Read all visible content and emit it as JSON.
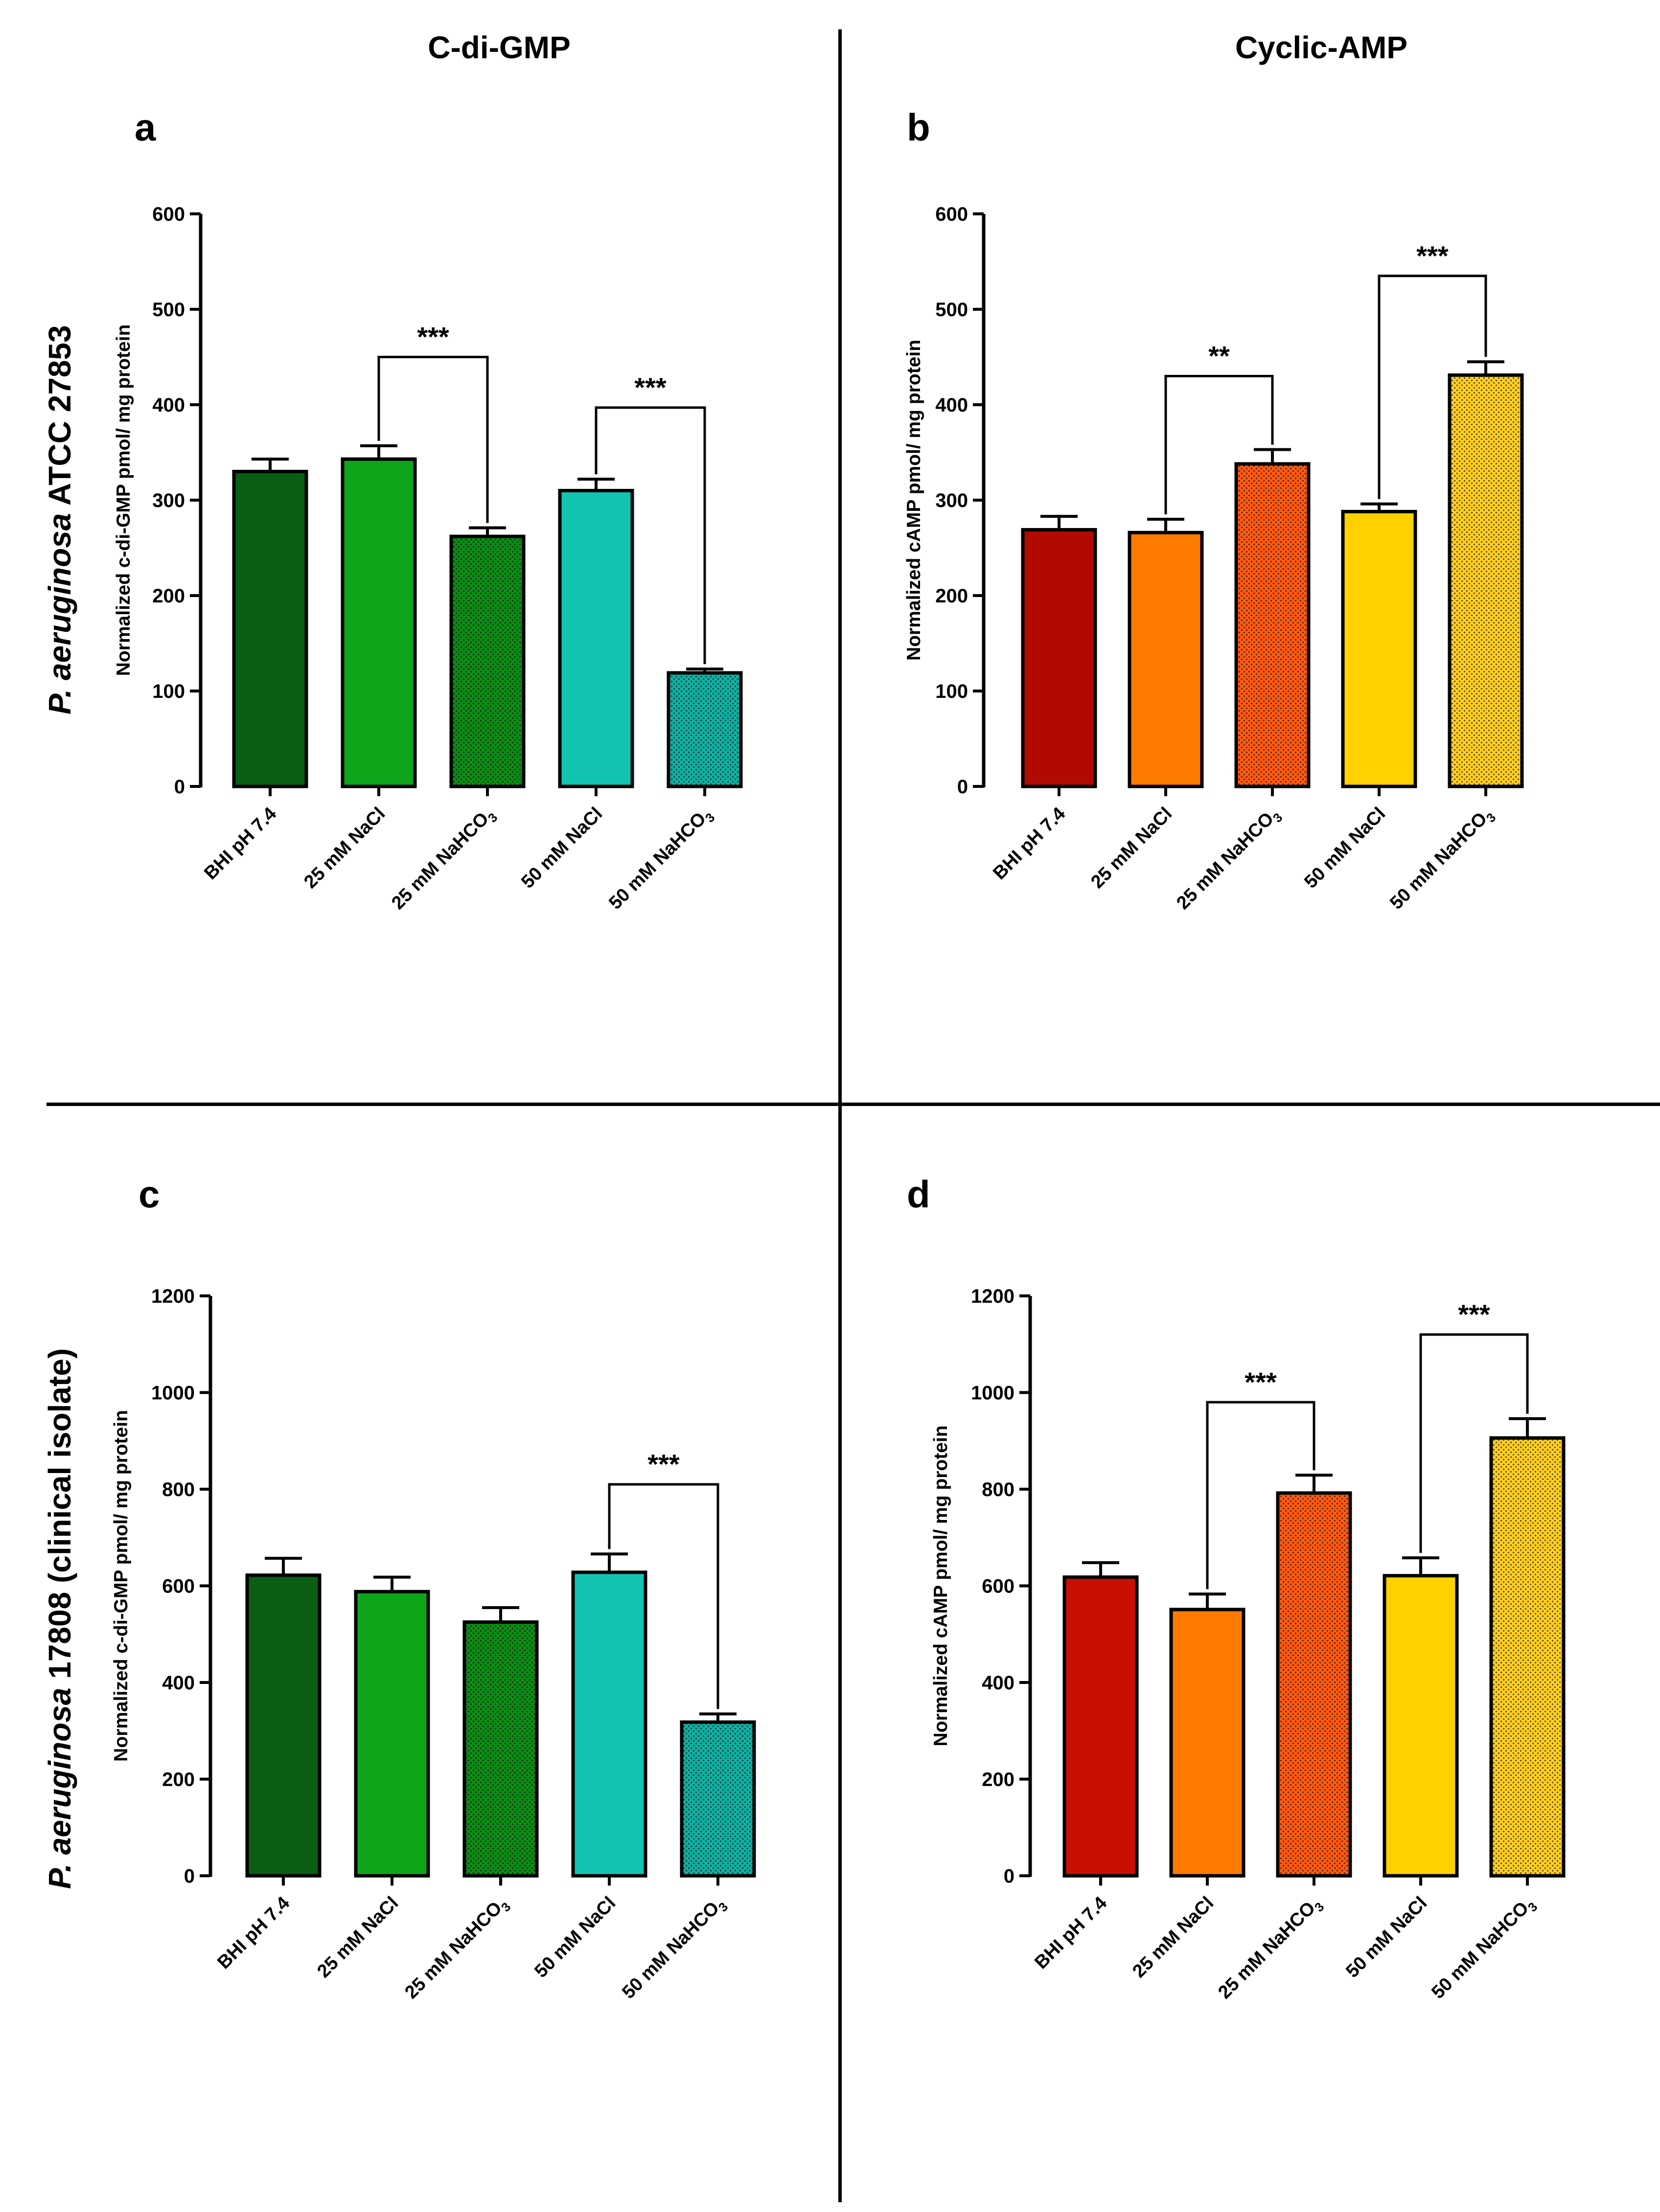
{
  "column_headers": [
    "C-di-GMP",
    "Cyclic-AMP"
  ],
  "row_labels": [
    {
      "italic": "P. aeruginosa",
      "rest": " ATCC 27853"
    },
    {
      "italic": "P. aeruginosa",
      "rest": " 17808 (clinical isolate)"
    }
  ],
  "chart_data": [
    {
      "panel": "a",
      "type": "bar",
      "ylabel": "Normalized c-di-GMP pmol/ mg protein",
      "ylim": [
        0,
        600
      ],
      "yticks": [
        0,
        100,
        200,
        300,
        400,
        500,
        600
      ],
      "categories": [
        "BHI pH 7.4",
        "25 mM NaCl",
        "25 mM NaHCO3",
        "50 mM NaCl",
        "50 mM NaHCO3"
      ],
      "values": [
        330,
        343,
        262,
        310,
        119
      ],
      "errors": [
        13,
        14,
        9,
        12,
        4
      ],
      "colors": [
        "#0a5e14",
        "#0fa51b",
        "#0c8c16",
        "#11c4b2",
        "#0fb0a2"
      ],
      "dotted": [
        false,
        false,
        true,
        false,
        true
      ],
      "significance": [
        {
          "from": 1,
          "to": 2,
          "label": "***",
          "level": 450
        },
        {
          "from": 3,
          "to": 4,
          "label": "***",
          "level": 397
        }
      ]
    },
    {
      "panel": "b",
      "type": "bar",
      "ylabel": "Normalized cAMP pmol/ mg protein",
      "ylim": [
        0,
        600
      ],
      "yticks": [
        0,
        100,
        200,
        300,
        400,
        500,
        600
      ],
      "categories": [
        "BHI pH 7.4",
        "25 mM NaCl",
        "25 mM NaHCO3",
        "50 mM NaCl",
        "50 mM NaHCO3"
      ],
      "values": [
        269,
        266,
        338,
        288,
        431
      ],
      "errors": [
        14,
        14,
        15,
        8,
        14
      ],
      "colors": [
        "#b00a02",
        "#ff7a00",
        "#ff5a0f",
        "#ffd100",
        "#ffce1f"
      ],
      "dotted": [
        false,
        false,
        true,
        false,
        true
      ],
      "significance": [
        {
          "from": 1,
          "to": 2,
          "label": "**",
          "level": 430
        },
        {
          "from": 3,
          "to": 4,
          "label": "***",
          "level": 535
        }
      ]
    },
    {
      "panel": "c",
      "type": "bar",
      "ylabel": "Normalized c-di-GMP pmol/ mg protein",
      "ylim": [
        0,
        1200
      ],
      "yticks": [
        0,
        200,
        400,
        600,
        800,
        1000,
        1200
      ],
      "categories": [
        "BHI pH 7.4",
        "25 mM NaCl",
        "25 mM NaHCO3",
        "50 mM NaCl",
        "50 mM NaHCO3"
      ],
      "values": [
        622,
        588,
        525,
        628,
        318
      ],
      "errors": [
        35,
        30,
        30,
        38,
        17
      ],
      "colors": [
        "#0a5e14",
        "#0fa51b",
        "#0c8c16",
        "#11c4b2",
        "#0fb0a2"
      ],
      "dotted": [
        false,
        false,
        true,
        false,
        true
      ],
      "significance": [
        {
          "from": 3,
          "to": 4,
          "label": "***",
          "level": 810
        }
      ]
    },
    {
      "panel": "d",
      "type": "bar",
      "ylabel": "Normalized cAMP pmol/ mg protein",
      "ylim": [
        0,
        1200
      ],
      "yticks": [
        0,
        200,
        400,
        600,
        800,
        1000,
        1200
      ],
      "categories": [
        "BHI pH 7.4",
        "25 mM NaCl",
        "25 mM NaHCO3",
        "50 mM NaCl",
        "50 mM NaHCO3"
      ],
      "values": [
        618,
        551,
        792,
        621,
        906
      ],
      "errors": [
        30,
        32,
        37,
        37,
        40
      ],
      "colors": [
        "#c80f02",
        "#ff7a00",
        "#ff5a0f",
        "#ffd100",
        "#ffce1f"
      ],
      "dotted": [
        false,
        false,
        true,
        false,
        true
      ],
      "significance": [
        {
          "from": 1,
          "to": 2,
          "label": "***",
          "level": 980
        },
        {
          "from": 3,
          "to": 4,
          "label": "***",
          "level": 1120
        }
      ]
    }
  ]
}
